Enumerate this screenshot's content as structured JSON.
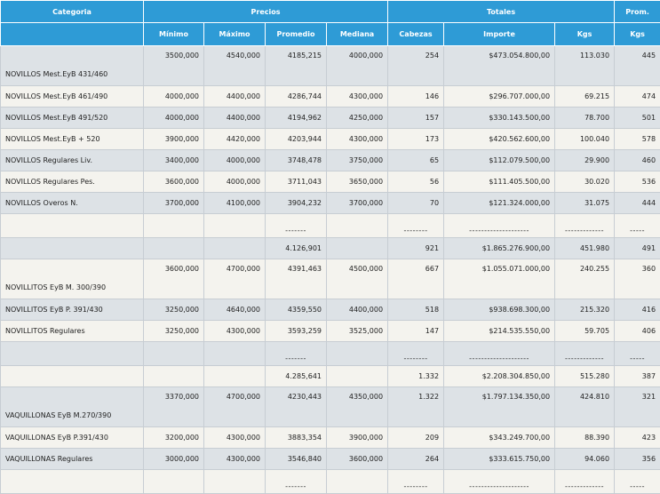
{
  "headers": {
    "categoria": "Categoria",
    "precios": "Precios",
    "totales": "Totales",
    "prom": "Prom.",
    "minimo": "Mínimo",
    "maximo": "Máximo",
    "promedio": "Promedio",
    "mediana": "Mediana",
    "cabezas": "Cabezas",
    "importe": "Importe",
    "kgs": "Kgs",
    "prom_kgs": "Kgs"
  },
  "rows": [
    {
      "cat": "NOVILLOS Mest.EyB 431/460",
      "min": "3500,000",
      "max": "4540,000",
      "prom": "4185,215",
      "med": "4000,000",
      "cab": "254",
      "imp": "$473.054.800,00",
      "kgs": "113.030",
      "pk": "445"
    },
    {
      "cat": "NOVILLOS Mest.EyB 461/490",
      "min": "4000,000",
      "max": "4400,000",
      "prom": "4286,744",
      "med": "4300,000",
      "cab": "146",
      "imp": "$296.707.000,00",
      "kgs": "69.215",
      "pk": "474"
    },
    {
      "cat": "NOVILLOS Mest.EyB 491/520",
      "min": "4000,000",
      "max": "4400,000",
      "prom": "4194,962",
      "med": "4250,000",
      "cab": "157",
      "imp": "$330.143.500,00",
      "kgs": "78.700",
      "pk": "501"
    },
    {
      "cat": "NOVILLOS Mest.EyB + 520",
      "min": "3900,000",
      "max": "4420,000",
      "prom": "4203,944",
      "med": "4300,000",
      "cab": "173",
      "imp": "$420.562.600,00",
      "kgs": "100.040",
      "pk": "578"
    },
    {
      "cat": "NOVILLOS Regulares Liv.",
      "min": "3400,000",
      "max": "4000,000",
      "prom": "3748,478",
      "med": "3750,000",
      "cab": "65",
      "imp": "$112.079.500,00",
      "kgs": "29.900",
      "pk": "460"
    },
    {
      "cat": "NOVILLOS Regulares Pes.",
      "min": "3600,000",
      "max": "4000,000",
      "prom": "3711,043",
      "med": "3650,000",
      "cab": "56",
      "imp": "$111.405.500,00",
      "kgs": "30.020",
      "pk": "536"
    },
    {
      "cat": "NOVILLOS Overos N.",
      "min": "3700,000",
      "max": "4100,000",
      "prom": "3904,232",
      "med": "3700,000",
      "cab": "70",
      "imp": "$121.324.000,00",
      "kgs": "31.075",
      "pk": "444"
    },
    {
      "cat": "",
      "min": "",
      "max": "",
      "prom": "-------",
      "med": "",
      "cab": "--------",
      "imp": "--------------------",
      "kgs": "-------------",
      "pk": "-----"
    },
    {
      "cat": "",
      "min": "",
      "max": "",
      "prom": "4.126,901",
      "med": "",
      "cab": "921",
      "imp": "$1.865.276.900,00",
      "kgs": "451.980",
      "pk": "491"
    },
    {
      "cat": "NOVILLITOS EyB M. 300/390",
      "min": "3600,000",
      "max": "4700,000",
      "prom": "4391,463",
      "med": "4500,000",
      "cab": "667",
      "imp": "$1.055.071.000,00",
      "kgs": "240.255",
      "pk": "360"
    },
    {
      "cat": "NOVILLITOS EyB P. 391/430",
      "min": "3250,000",
      "max": "4640,000",
      "prom": "4359,550",
      "med": "4400,000",
      "cab": "518",
      "imp": "$938.698.300,00",
      "kgs": "215.320",
      "pk": "416"
    },
    {
      "cat": "NOVILLITOS Regulares",
      "min": "3250,000",
      "max": "4300,000",
      "prom": "3593,259",
      "med": "3525,000",
      "cab": "147",
      "imp": "$214.535.550,00",
      "kgs": "59.705",
      "pk": "406"
    },
    {
      "cat": "",
      "min": "",
      "max": "",
      "prom": "-------",
      "med": "",
      "cab": "--------",
      "imp": "--------------------",
      "kgs": "-------------",
      "pk": "-----"
    },
    {
      "cat": "",
      "min": "",
      "max": "",
      "prom": "4.285,641",
      "med": "",
      "cab": "1.332",
      "imp": "$2.208.304.850,00",
      "kgs": "515.280",
      "pk": "387"
    },
    {
      "cat": "VAQUILLONAS EyB M.270/390",
      "min": "3370,000",
      "max": "4700,000",
      "prom": "4230,443",
      "med": "4350,000",
      "cab": "1.322",
      "imp": "$1.797.134.350,00",
      "kgs": "424.810",
      "pk": "321"
    },
    {
      "cat": "VAQUILLONAS EyB P.391/430",
      "min": "3200,000",
      "max": "4300,000",
      "prom": "3883,354",
      "med": "3900,000",
      "cab": "209",
      "imp": "$343.249.700,00",
      "kgs": "88.390",
      "pk": "423"
    },
    {
      "cat": "VAQUILLONAS Regulares",
      "min": "3000,000",
      "max": "4300,000",
      "prom": "3546,840",
      "med": "3600,000",
      "cab": "264",
      "imp": "$333.615.750,00",
      "kgs": "94.060",
      "pk": "356"
    },
    {
      "cat": "",
      "min": "",
      "max": "",
      "prom": "-------",
      "med": "",
      "cab": "--------",
      "imp": "--------------------",
      "kgs": "-------------",
      "pk": "-----"
    }
  ]
}
